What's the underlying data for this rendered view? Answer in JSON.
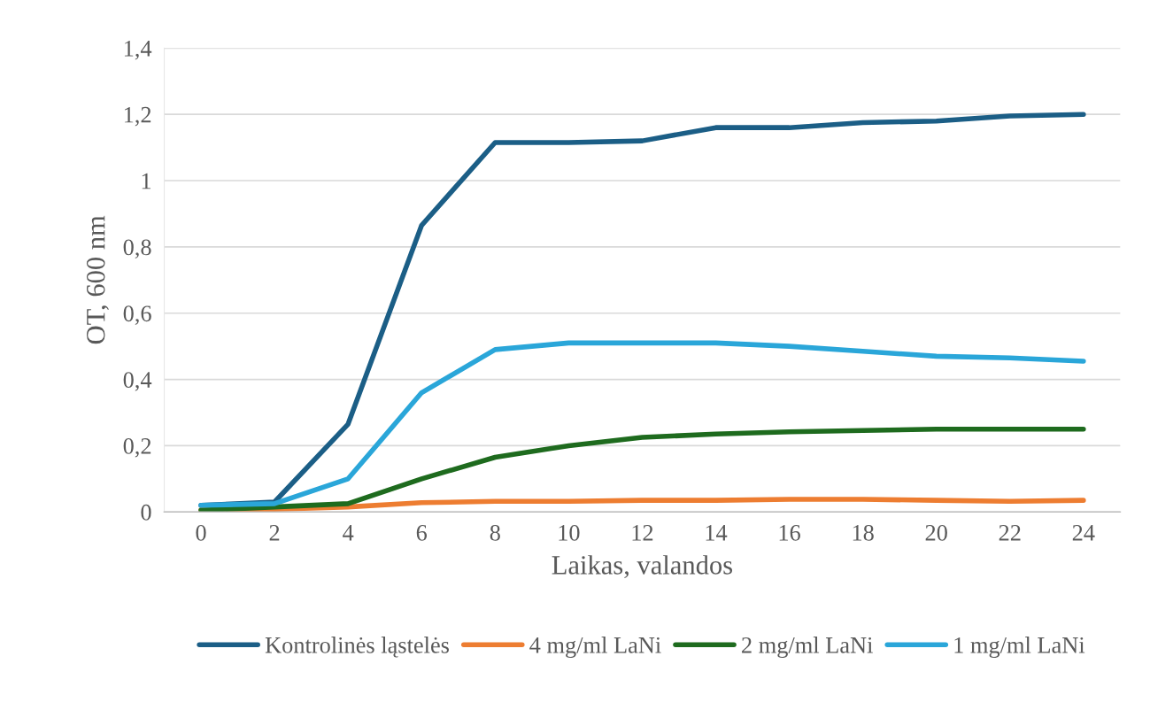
{
  "chart_data": {
    "type": "line",
    "xlabel": "Laikas, valandos",
    "ylabel": "OT, 600 nm",
    "categories": [
      "0",
      "2",
      "4",
      "6",
      "8",
      "10",
      "12",
      "14",
      "16",
      "18",
      "20",
      "22",
      "24"
    ],
    "series": [
      {
        "name": "Kontrolinės ląstelės",
        "color": "#1b5e86",
        "values": [
          0.02,
          0.03,
          0.265,
          0.865,
          1.115,
          1.115,
          1.12,
          1.16,
          1.16,
          1.175,
          1.18,
          1.195,
          1.2
        ]
      },
      {
        "name": "4 mg/ml LaNi",
        "color": "#ed7d31",
        "values": [
          0.005,
          0.008,
          0.015,
          0.028,
          0.032,
          0.032,
          0.035,
          0.035,
          0.038,
          0.038,
          0.035,
          0.032,
          0.035
        ]
      },
      {
        "name": "2 mg/ml LaNi",
        "color": "#1e6b1e",
        "values": [
          0.005,
          0.015,
          0.025,
          0.1,
          0.165,
          0.2,
          0.225,
          0.235,
          0.242,
          0.246,
          0.25,
          0.25,
          0.25
        ]
      },
      {
        "name": "1 mg/ml LaNi",
        "color": "#2aa6d9",
        "values": [
          0.02,
          0.025,
          0.1,
          0.36,
          0.49,
          0.51,
          0.51,
          0.51,
          0.5,
          0.485,
          0.47,
          0.465,
          0.455
        ]
      }
    ],
    "ylim": [
      0,
      1.4
    ],
    "yticks": [
      0,
      {
        "value": 0.2,
        "label": "0,2"
      },
      {
        "value": 0.4,
        "label": "0,4"
      },
      {
        "value": 0.6,
        "label": "0,6"
      },
      {
        "value": 0.8,
        "label": "0,8"
      },
      1,
      {
        "value": 1.2,
        "label": "1,2"
      },
      {
        "value": 1.4,
        "label": "1,4"
      }
    ],
    "grid": "y",
    "legend": "bottom",
    "marker": "none",
    "line_style": "solid"
  }
}
